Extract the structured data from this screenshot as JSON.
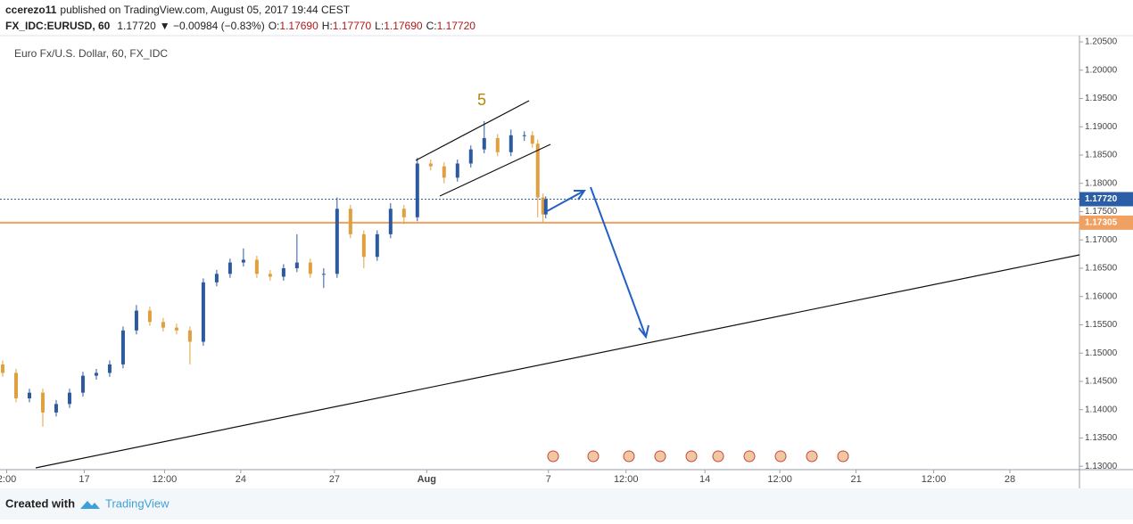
{
  "header": {
    "author": "ccerezo11",
    "published": "published on TradingView.com, August 05, 2017 19:44 CEST",
    "symbol": "FX_IDC:EURUSD, 60",
    "last": "1.17720",
    "change": "▼ −0.00984 (−0.83%)",
    "ohlc": [
      {
        "label": "O:",
        "value": "1.17690"
      },
      {
        "label": "H:",
        "value": "1.17770"
      },
      {
        "label": "L:",
        "value": "1.17690"
      },
      {
        "label": "C:",
        "value": "1.17720"
      }
    ]
  },
  "footer": {
    "created": "Created with",
    "brand": "TradingView"
  },
  "chart_data": {
    "type": "candlestick",
    "title": "Euro Fx/U.S. Dollar, 60, FX_IDC",
    "annotation": "5",
    "up_color": "#2d5a9e",
    "down_color": "#e0a040",
    "x": [
      2,
      12,
      22,
      32,
      42,
      52,
      62,
      72,
      82,
      92,
      102,
      112,
      122,
      132,
      142,
      152,
      162,
      172,
      182,
      192,
      202,
      212,
      222,
      232,
      242,
      252,
      262,
      272,
      282,
      292,
      302,
      312,
      322,
      332,
      342,
      352,
      362,
      372,
      382,
      392,
      398,
      402,
      406,
      408
    ],
    "open": [
      1.148,
      1.1465,
      1.142,
      1.143,
      1.1395,
      1.141,
      1.143,
      1.146,
      1.1465,
      1.148,
      1.154,
      1.1575,
      1.1555,
      1.1545,
      1.154,
      1.152,
      1.1625,
      1.164,
      1.166,
      1.1665,
      1.164,
      1.1635,
      1.165,
      1.166,
      1.164,
      1.164,
      1.1755,
      1.171,
      1.167,
      1.171,
      1.1755,
      1.174,
      1.1835,
      1.183,
      1.181,
      1.1835,
      1.186,
      1.188,
      1.1855,
      1.1885,
      1.1885,
      1.187,
      1.1775,
      1.1745
    ],
    "high": [
      1.1487,
      1.1472,
      1.1437,
      1.1437,
      1.1417,
      1.1437,
      1.1467,
      1.1472,
      1.1487,
      1.1547,
      1.1585,
      1.1582,
      1.1562,
      1.1552,
      1.1547,
      1.1632,
      1.1647,
      1.1667,
      1.1685,
      1.1672,
      1.1647,
      1.1657,
      1.171,
      1.1667,
      1.165,
      1.1775,
      1.1762,
      1.1717,
      1.1717,
      1.1765,
      1.1762,
      1.1845,
      1.1842,
      1.1837,
      1.1842,
      1.1867,
      1.191,
      1.1887,
      1.1895,
      1.1892,
      1.1892,
      1.1877,
      1.1782,
      1.1777
    ],
    "low": [
      1.1458,
      1.1413,
      1.1413,
      1.137,
      1.1388,
      1.1403,
      1.1423,
      1.1453,
      1.1458,
      1.1473,
      1.1533,
      1.1548,
      1.1538,
      1.1533,
      1.148,
      1.1513,
      1.1618,
      1.1633,
      1.1653,
      1.1633,
      1.1628,
      1.1628,
      1.1643,
      1.1633,
      1.1615,
      1.1633,
      1.1703,
      1.165,
      1.1663,
      1.1703,
      1.1728,
      1.1733,
      1.1823,
      1.18,
      1.1803,
      1.1828,
      1.1853,
      1.1848,
      1.1848,
      1.1875,
      1.1863,
      1.174,
      1.173,
      1.1738
    ],
    "close": [
      1.1465,
      1.142,
      1.143,
      1.1395,
      1.141,
      1.143,
      1.146,
      1.1465,
      1.148,
      1.154,
      1.1575,
      1.1555,
      1.1545,
      1.154,
      1.152,
      1.1625,
      1.164,
      1.166,
      1.1665,
      1.164,
      1.1635,
      1.165,
      1.166,
      1.164,
      1.164,
      1.1755,
      1.171,
      1.167,
      1.171,
      1.1755,
      1.174,
      1.1835,
      1.183,
      1.181,
      1.1835,
      1.186,
      1.188,
      1.1855,
      1.1885,
      1.1885,
      1.187,
      1.1775,
      1.1745,
      1.1772
    ],
    "xlim": [
      0,
      807
    ],
    "xticks": [
      {
        "value": 5,
        "label": "2:00"
      },
      {
        "value": 63,
        "label": "17"
      },
      {
        "value": 123,
        "label": "12:00"
      },
      {
        "value": 180,
        "label": "24"
      },
      {
        "value": 250,
        "label": "27"
      },
      {
        "value": 319,
        "label": "Aug"
      },
      {
        "value": 410,
        "label": "7"
      },
      {
        "value": 468,
        "label": "12:00"
      },
      {
        "value": 527,
        "label": "14"
      },
      {
        "value": 583,
        "label": "12:00"
      },
      {
        "value": 640,
        "label": "21"
      },
      {
        "value": 698,
        "label": "12:00"
      },
      {
        "value": 755,
        "label": "28"
      }
    ],
    "ylim": [
      1.1294,
      1.2061
    ],
    "yticks": [
      {
        "value": 1.13,
        "label": "1.13000"
      },
      {
        "value": 1.135,
        "label": "1.13500"
      },
      {
        "value": 1.14,
        "label": "1.14000"
      },
      {
        "value": 1.145,
        "label": "1.14500"
      },
      {
        "value": 1.15,
        "label": "1.15000"
      },
      {
        "value": 1.155,
        "label": "1.15500"
      },
      {
        "value": 1.16,
        "label": "1.16000"
      },
      {
        "value": 1.165,
        "label": "1.16500"
      },
      {
        "value": 1.17,
        "label": "1.17000"
      },
      {
        "value": 1.175,
        "label": "1.17500"
      },
      {
        "value": 1.18,
        "label": "1.18000"
      },
      {
        "value": 1.185,
        "label": "1.18500"
      },
      {
        "value": 1.19,
        "label": "1.19000"
      },
      {
        "value": 1.195,
        "label": "1.19500"
      },
      {
        "value": 1.2,
        "label": "1.20000"
      },
      {
        "value": 1.205,
        "label": "1.20500"
      }
    ],
    "price_lines": [
      {
        "value": 1.1772,
        "label": "1.17720",
        "color": "#2c5ea8",
        "dashed": true
      },
      {
        "value": 1.17305,
        "label": "1.17305",
        "color": "#f0a060",
        "dashed": false
      }
    ]
  }
}
